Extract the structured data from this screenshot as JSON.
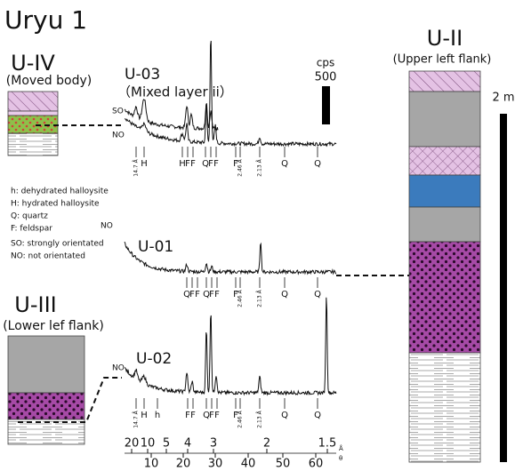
{
  "title": "Uryu 1",
  "units": [
    {
      "label": "U-IV",
      "note": "(Moved body)"
    },
    {
      "label": "U-II",
      "note": "(Upper left flank)"
    },
    {
      "label": "U-III",
      "note": "(Lower lef flank)"
    }
  ],
  "patterns": [
    {
      "label": "U-03",
      "note": "（Mixed layer ii）",
      "traces": [
        "SO",
        "NO"
      ],
      "peaks": [
        "14.7 Å",
        "H",
        "H",
        "F",
        "F",
        "Q",
        "F",
        "F",
        "F",
        "2.46 Å",
        "2.13 Å",
        "Q",
        "Q"
      ]
    },
    {
      "label": "U-01",
      "traces": [
        "NO"
      ],
      "peaks": [
        "Q",
        "F",
        "F",
        "Q",
        "F",
        "F",
        "F",
        "2.46 Å",
        "2.13 Å",
        "Q",
        "Q"
      ]
    },
    {
      "label": "U-02",
      "traces": [
        "NO"
      ],
      "peaks": [
        "14.7 Å",
        "H",
        "h",
        "F",
        "F",
        "Q",
        "F",
        "F",
        "F",
        "2.46 Å",
        "2.13 Å",
        "Q",
        "Q"
      ]
    }
  ],
  "legend": [
    "h: dehydrated halloysite",
    "H: hydrated halloysite",
    "Q: quartz",
    "F: feldspar",
    "SO: strongly orientated",
    "NO: not orientated"
  ],
  "legend_marker": "NO",
  "scale": {
    "cps_unit": "cps",
    "cps_value": "500",
    "column_scale": "2 m"
  },
  "axis": {
    "d_ticks": [
      "20",
      "10",
      "5",
      "4",
      "3",
      "2",
      "1.5"
    ],
    "d_unit": "Å",
    "theta_ticks": [
      "10",
      "20",
      "30",
      "40",
      "50",
      "60"
    ],
    "theta_unit": "θ"
  }
}
